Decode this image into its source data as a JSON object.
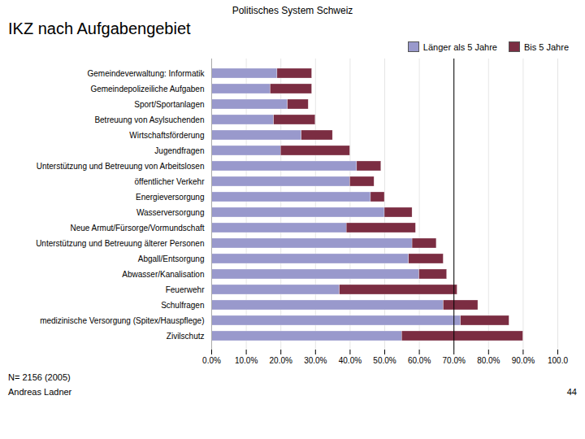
{
  "chart_data": {
    "type": "bar",
    "orientation": "horizontal",
    "stacked": true,
    "title": "Politisches System Schweiz",
    "subtitle": "IKZ nach Aufgabengebiet",
    "annotations": [
      "N= 2156 (2005)",
      "Andreas Ladner",
      "44"
    ],
    "categories": [
      "Gemeindeverwaltung: Informatik",
      "Gemeindepolizeiliche Aufgaben",
      "Sport/Sportanlagen",
      "Betreuung von Asylsuchenden",
      "Wirtschaftsförderung",
      "Jugendfragen",
      "Unterstützung und Betreuung von Arbeitslosen",
      "öffentlicher Verkehr",
      "Energieversorgung",
      "Wasserversorgung",
      "Neue Armut/Fürsorge/Vormundschaft",
      "Unterstützung und Betreuung älterer Personen",
      "Abgall/Entsorgung",
      "Abwasser/Kanalisation",
      "Feuerwehr",
      "Schulfragen",
      "medizinische Versorgung (Spitex/Hauspflege)",
      "Zivilschutz"
    ],
    "series": [
      {
        "name": "Länger als 5 Jahre",
        "color": "#9999cc",
        "values": [
          19,
          17,
          22,
          18,
          26,
          20,
          42,
          40,
          46,
          50,
          39,
          58,
          57,
          60,
          37,
          67,
          72,
          55
        ]
      },
      {
        "name": "Bis 5 Jahre",
        "color": "#7b2d42",
        "values": [
          10,
          12,
          6,
          12,
          9,
          20,
          7,
          7,
          4,
          8,
          20,
          7,
          10,
          8,
          34,
          10,
          14,
          35
        ]
      }
    ],
    "xlim": [
      0,
      100
    ],
    "xticks": [
      {
        "value": 0,
        "label": "0.0%"
      },
      {
        "value": 10,
        "label": "10.0%"
      },
      {
        "value": 20,
        "label": "20.0%"
      },
      {
        "value": 30,
        "label": "30.0%"
      },
      {
        "value": 40,
        "label": "40.0%"
      },
      {
        "value": 50,
        "label": "50.0%"
      },
      {
        "value": 60,
        "label": "60.0%"
      },
      {
        "value": 70,
        "label": "70.0%"
      },
      {
        "value": 80,
        "label": "80.0%"
      },
      {
        "value": 90,
        "label": "90.0%"
      },
      {
        "value": 100,
        "label": "100.0"
      }
    ],
    "grid": true,
    "legend": "upper right",
    "reference_lines": [
      {
        "x": 70,
        "color": "#000000"
      }
    ]
  }
}
